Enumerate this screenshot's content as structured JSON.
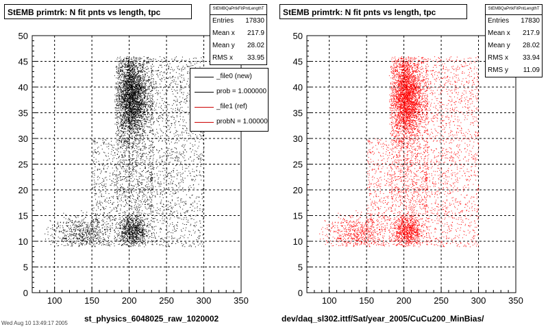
{
  "colors": {
    "reference_markers": "#000000",
    "new_markers": "#ff0000",
    "legend_ref_line": "#000000",
    "legend_new_line": "#cc0000"
  },
  "left": {
    "title": "StEMB primtrk: N fit pnts vs length, tpc",
    "stats": {
      "name": "StEMBQaPrtkFitPntLengthT",
      "rows": [
        {
          "label": "Entries",
          "value": "17830"
        },
        {
          "label": "Mean x",
          "value": "217.9"
        },
        {
          "label": "Mean y",
          "value": "28.02"
        },
        {
          "label": "RMS x",
          "value": "33.95"
        }
      ]
    },
    "legend": [
      {
        "text": "_file0 (new)"
      },
      {
        "text": "prob = 1.000000"
      },
      {
        "text": "_file1 (ref)"
      },
      {
        "text": "probN = 1.000000"
      }
    ],
    "xlabel": "st_physics_6048025_raw_1020002"
  },
  "right": {
    "title": "StEMB primtrk: N fit pnts vs length, tpc",
    "stats": {
      "name": "StEMBQaPrtkFitPntLengthT",
      "rows": [
        {
          "label": "Entries",
          "value": "17830"
        },
        {
          "label": "Mean x",
          "value": "217.9"
        },
        {
          "label": "Mean y",
          "value": "28.02"
        },
        {
          "label": "RMS x",
          "value": "33.94"
        },
        {
          "label": "RMS y",
          "value": "11.09"
        }
      ]
    },
    "xlabel": "dev/daq_sl302.ittf/Sat/year_2005/CuCu200_MinBias/"
  },
  "footer": "Wed Aug 10 13:49:17 2005",
  "chart_data": [
    {
      "type": "scatter",
      "title": "StEMB primtrk: N fit pnts vs length, tpc",
      "xlabel": "st_physics_6048025_raw_1020002",
      "ylabel": "",
      "xlim": [
        70,
        350
      ],
      "ylim": [
        0,
        50
      ],
      "xticks": [
        100,
        150,
        200,
        250,
        300,
        350
      ],
      "yticks": [
        0,
        5,
        10,
        15,
        20,
        25,
        30,
        35,
        40,
        45,
        50
      ],
      "grid": true,
      "legend_position": "top-right",
      "entries": 17830,
      "mean_x": 217.9,
      "mean_y": 28.02,
      "rms_x": 33.95,
      "color": "#000000",
      "density_regions": [
        {
          "x": [
            180,
            225
          ],
          "y": [
            30,
            46
          ],
          "density": "very high"
        },
        {
          "x": [
            180,
            225
          ],
          "y": [
            9,
            16
          ],
          "density": "high"
        },
        {
          "x": [
            180,
            300
          ],
          "y": [
            16,
            46
          ],
          "density": "medium"
        },
        {
          "x": [
            85,
            180
          ],
          "y": [
            9,
            16
          ],
          "density": "low"
        },
        {
          "x": [
            225,
            300
          ],
          "y": [
            9,
            46
          ],
          "density": "medium"
        }
      ]
    },
    {
      "type": "scatter",
      "title": "StEMB primtrk: N fit pnts vs length, tpc",
      "xlabel": "dev/daq_sl302.ittf/Sat/year_2005/CuCu200_MinBias/",
      "ylabel": "",
      "xlim": [
        70,
        350
      ],
      "ylim": [
        0,
        50
      ],
      "xticks": [
        100,
        150,
        200,
        250,
        300,
        350
      ],
      "yticks": [
        0,
        5,
        10,
        15,
        20,
        25,
        30,
        35,
        40,
        45,
        50
      ],
      "grid": true,
      "entries": 17830,
      "mean_x": 217.9,
      "mean_y": 28.02,
      "rms_x": 33.94,
      "rms_y": 11.09,
      "color": "#ff0000",
      "density_regions": [
        {
          "x": [
            180,
            225
          ],
          "y": [
            30,
            46
          ],
          "density": "very high"
        },
        {
          "x": [
            180,
            225
          ],
          "y": [
            9,
            16
          ],
          "density": "high"
        },
        {
          "x": [
            180,
            300
          ],
          "y": [
            16,
            46
          ],
          "density": "medium"
        },
        {
          "x": [
            85,
            180
          ],
          "y": [
            9,
            16
          ],
          "density": "low"
        },
        {
          "x": [
            225,
            300
          ],
          "y": [
            9,
            46
          ],
          "density": "medium"
        }
      ]
    }
  ]
}
